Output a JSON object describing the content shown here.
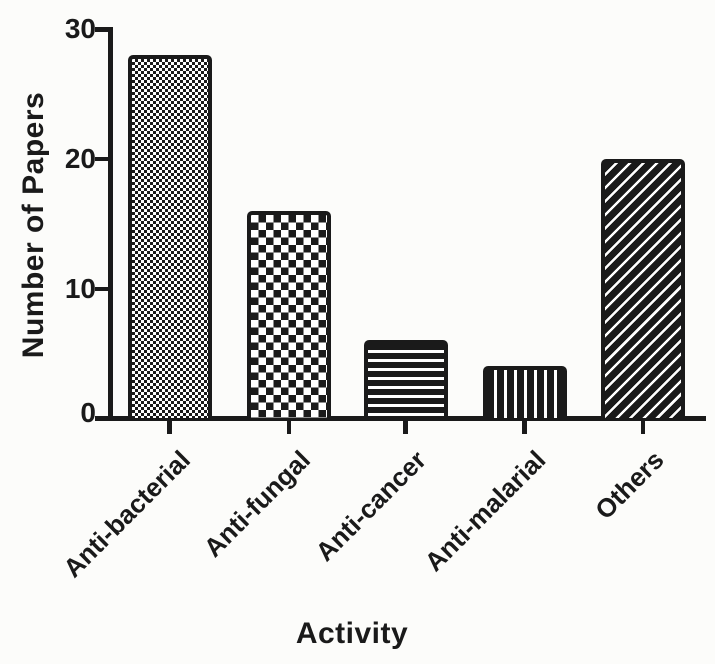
{
  "chart_data": {
    "type": "bar",
    "title": "",
    "xlabel": "Activity",
    "ylabel": "Number of Papers",
    "categories": [
      "Anti-bacterial",
      "Anti-fungal",
      "Anti-cancer",
      "Anti-malarial",
      "Others"
    ],
    "values": [
      28,
      16,
      6,
      4,
      20
    ],
    "bar_patterns": [
      "fine-check",
      "coarse-check",
      "horizontal-stripes",
      "vertical-stripes",
      "diagonal-stripes"
    ],
    "yticks": [
      0,
      10,
      20,
      30
    ],
    "ylim": [
      0,
      30
    ],
    "grid": false,
    "legend": "none",
    "bar_color": "#1a1a1a",
    "pattern_background": "#ffffff",
    "page_background": "#fcfcfa",
    "x_label_rotation_deg": 45
  }
}
